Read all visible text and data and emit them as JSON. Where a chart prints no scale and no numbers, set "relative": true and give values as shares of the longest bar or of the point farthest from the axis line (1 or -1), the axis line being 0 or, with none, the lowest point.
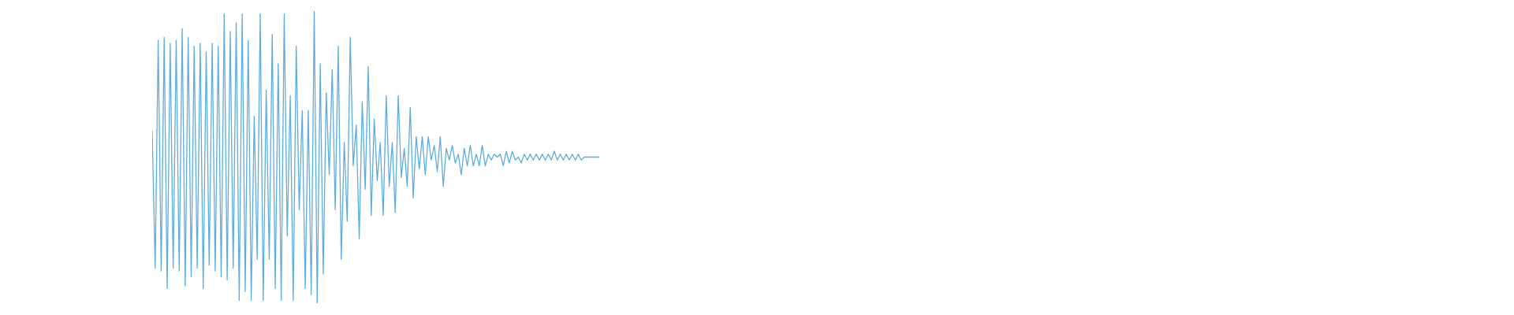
{
  "chart_data": {
    "type": "line",
    "relative": true,
    "color": "#5dade2",
    "marker": "none",
    "line_style": "solid",
    "categories": [
      null,
      null,
      null,
      null,
      null,
      null,
      null,
      null,
      null,
      null,
      null,
      null,
      null,
      null,
      null,
      null,
      null,
      null,
      null,
      null,
      null,
      null,
      null,
      null,
      null,
      null,
      null,
      null,
      null,
      null,
      null,
      null,
      null,
      null,
      null,
      null,
      null,
      null,
      null,
      null,
      null,
      null,
      null,
      null,
      null,
      null,
      null,
      null,
      null,
      null,
      null,
      null,
      null,
      null,
      null,
      null,
      null,
      null,
      null,
      null,
      null,
      null,
      null,
      null,
      null,
      null,
      null,
      null,
      null,
      null,
      null,
      null,
      null,
      null,
      null,
      null,
      null,
      null,
      null,
      null,
      null,
      null,
      null,
      null,
      null,
      null,
      null,
      null,
      null,
      null,
      null,
      null,
      null,
      null,
      null,
      null,
      null,
      null,
      null,
      null,
      null,
      null,
      null,
      null,
      null,
      null,
      null,
      null,
      null,
      null,
      null,
      null,
      null,
      null,
      null,
      null,
      null,
      null,
      null,
      null,
      null,
      null,
      null,
      null,
      null,
      null,
      null,
      null,
      null,
      null,
      null,
      null,
      null,
      null,
      null,
      null,
      null,
      null,
      null,
      null,
      null,
      null,
      null,
      null,
      null,
      null,
      null,
      null,
      null,
      null
    ],
    "values": [
      0.59,
      0.12,
      0.9,
      0.11,
      0.91,
      0.05,
      0.89,
      0.12,
      0.9,
      0.11,
      0.94,
      0.06,
      0.91,
      0.09,
      0.88,
      0.12,
      0.89,
      0.05,
      0.86,
      0.13,
      0.89,
      0.11,
      0.88,
      0.09,
      0.99,
      0.08,
      0.93,
      0.12,
      0.96,
      0.01,
      0.99,
      0.04,
      0.9,
      0.01,
      0.64,
      0.15,
      0.99,
      0.01,
      0.73,
      0.15,
      0.92,
      0.05,
      0.82,
      0.01,
      0.99,
      0.23,
      0.71,
      0.01,
      0.88,
      0.32,
      0.66,
      0.05,
      0.66,
      0.03,
      1.0,
      0.0,
      0.82,
      0.1,
      0.72,
      0.44,
      0.8,
      0.32,
      0.88,
      0.15,
      0.55,
      0.28,
      0.91,
      0.47,
      0.61,
      0.22,
      0.69,
      0.39,
      0.81,
      0.3,
      0.63,
      0.42,
      0.55,
      0.3,
      0.71,
      0.4,
      0.55,
      0.31,
      0.71,
      0.43,
      0.53,
      0.4,
      0.67,
      0.36,
      0.57,
      0.46,
      0.57,
      0.44,
      0.57,
      0.49,
      0.54,
      0.45,
      0.57,
      0.4,
      0.53,
      0.49,
      0.54,
      0.48,
      0.51,
      0.44,
      0.53,
      0.47,
      0.54,
      0.47,
      0.51,
      0.47,
      0.54,
      0.47,
      0.51,
      0.49,
      0.51,
      0.5,
      0.51,
      0.47,
      0.52,
      0.48,
      0.52,
      0.49,
      0.5,
      0.48,
      0.51,
      0.49,
      0.51,
      0.49,
      0.51,
      0.49,
      0.51,
      0.49,
      0.51,
      0.49,
      0.52,
      0.49,
      0.51,
      0.49,
      0.51,
      0.49,
      0.51,
      0.49,
      0.51,
      0.49,
      0.5,
      0.5,
      0.5,
      0.5,
      0.5,
      0.5
    ]
  }
}
